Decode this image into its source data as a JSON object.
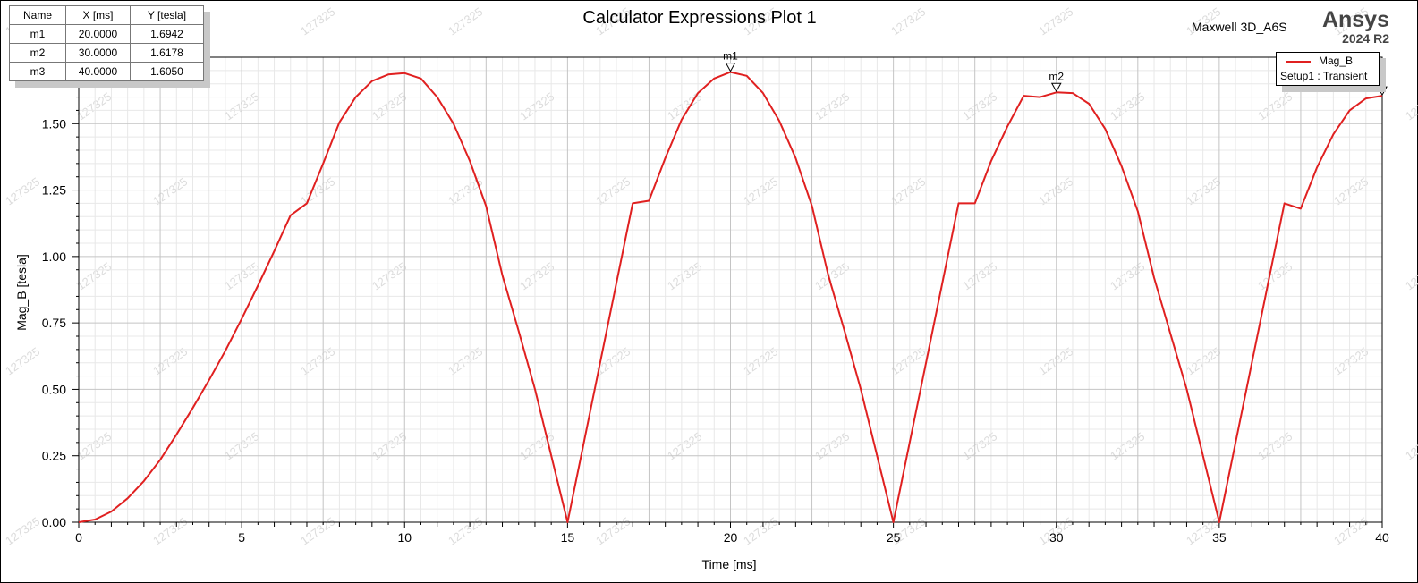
{
  "chart_data": {
    "type": "line",
    "title": "Calculator Expressions Plot 1",
    "xlabel": "Time [ms]",
    "ylabel": "Mag_B [tesla]",
    "xlim": [
      0,
      40
    ],
    "ylim": [
      0,
      1.75
    ],
    "xticks": [
      "0",
      "5",
      "10",
      "15",
      "20",
      "25",
      "30",
      "35",
      "40"
    ],
    "yticks": [
      "0.00",
      "0.25",
      "0.50",
      "0.75",
      "1.00",
      "1.25",
      "1.50"
    ],
    "series": [
      {
        "name": "Mag_B",
        "color": "#e02020",
        "x": [
          0,
          0.5,
          1,
          1.5,
          2,
          2.5,
          3,
          3.5,
          4,
          4.5,
          5,
          5.5,
          6,
          6.5,
          7,
          7.5,
          8,
          8.5,
          9,
          9.5,
          10,
          10.5,
          11,
          11.5,
          12,
          12.5,
          13,
          13.5,
          14,
          14.5,
          15,
          15.5,
          16,
          16.5,
          17,
          17.5,
          18,
          18.5,
          19,
          19.5,
          20,
          20.5,
          21,
          21.5,
          22,
          22.5,
          23,
          23.5,
          24,
          24.5,
          25,
          25.5,
          26,
          26.5,
          27,
          27.5,
          28,
          28.5,
          29,
          29.5,
          30,
          30.5,
          31,
          31.5,
          32,
          32.5,
          33,
          33.5,
          34,
          34.5,
          35,
          35.5,
          36,
          36.5,
          37,
          37.5,
          38,
          38.5,
          39,
          39.5,
          40
        ],
        "y": [
          0.0,
          0.01,
          0.04,
          0.09,
          0.155,
          0.235,
          0.33,
          0.43,
          0.535,
          0.645,
          0.765,
          0.89,
          1.02,
          1.155,
          1.2,
          1.35,
          1.505,
          1.6,
          1.66,
          1.685,
          1.69,
          1.67,
          1.6,
          1.5,
          1.36,
          1.19,
          0.93,
          0.72,
          0.5,
          0.25,
          0.0,
          0.3,
          0.6,
          0.9,
          1.2,
          1.21,
          1.37,
          1.515,
          1.615,
          1.67,
          1.694,
          1.68,
          1.615,
          1.51,
          1.37,
          1.19,
          0.93,
          0.72,
          0.5,
          0.25,
          0.0,
          0.3,
          0.6,
          0.9,
          1.2,
          1.2,
          1.36,
          1.49,
          1.605,
          1.6,
          1.6178,
          1.615,
          1.575,
          1.48,
          1.34,
          1.17,
          0.92,
          0.71,
          0.5,
          0.25,
          0.0,
          0.3,
          0.6,
          0.9,
          1.2,
          1.18,
          1.335,
          1.46,
          1.55,
          1.595,
          1.605
        ]
      }
    ],
    "markers": [
      {
        "name": "m1",
        "x": 20.0,
        "y": 1.6942
      },
      {
        "name": "m2",
        "x": 30.0,
        "y": 1.6178
      },
      {
        "name": "m3",
        "x": 40.0,
        "y": 1.605
      }
    ]
  },
  "marker_table": {
    "headers": [
      "Name",
      "X [ms]",
      "Y [tesla]"
    ],
    "rows": [
      [
        "m1",
        "20.0000",
        "1.6942"
      ],
      [
        "m2",
        "30.0000",
        "1.6178"
      ],
      [
        "m3",
        "40.0000",
        "1.6050"
      ]
    ]
  },
  "legend": {
    "name": "Mag_B",
    "setup": "Setup1 : Transient"
  },
  "header": {
    "design_name": "Maxwell 3D_A6S",
    "brand": "Ansys",
    "version": "2024 R2"
  },
  "watermark_text": "127325"
}
